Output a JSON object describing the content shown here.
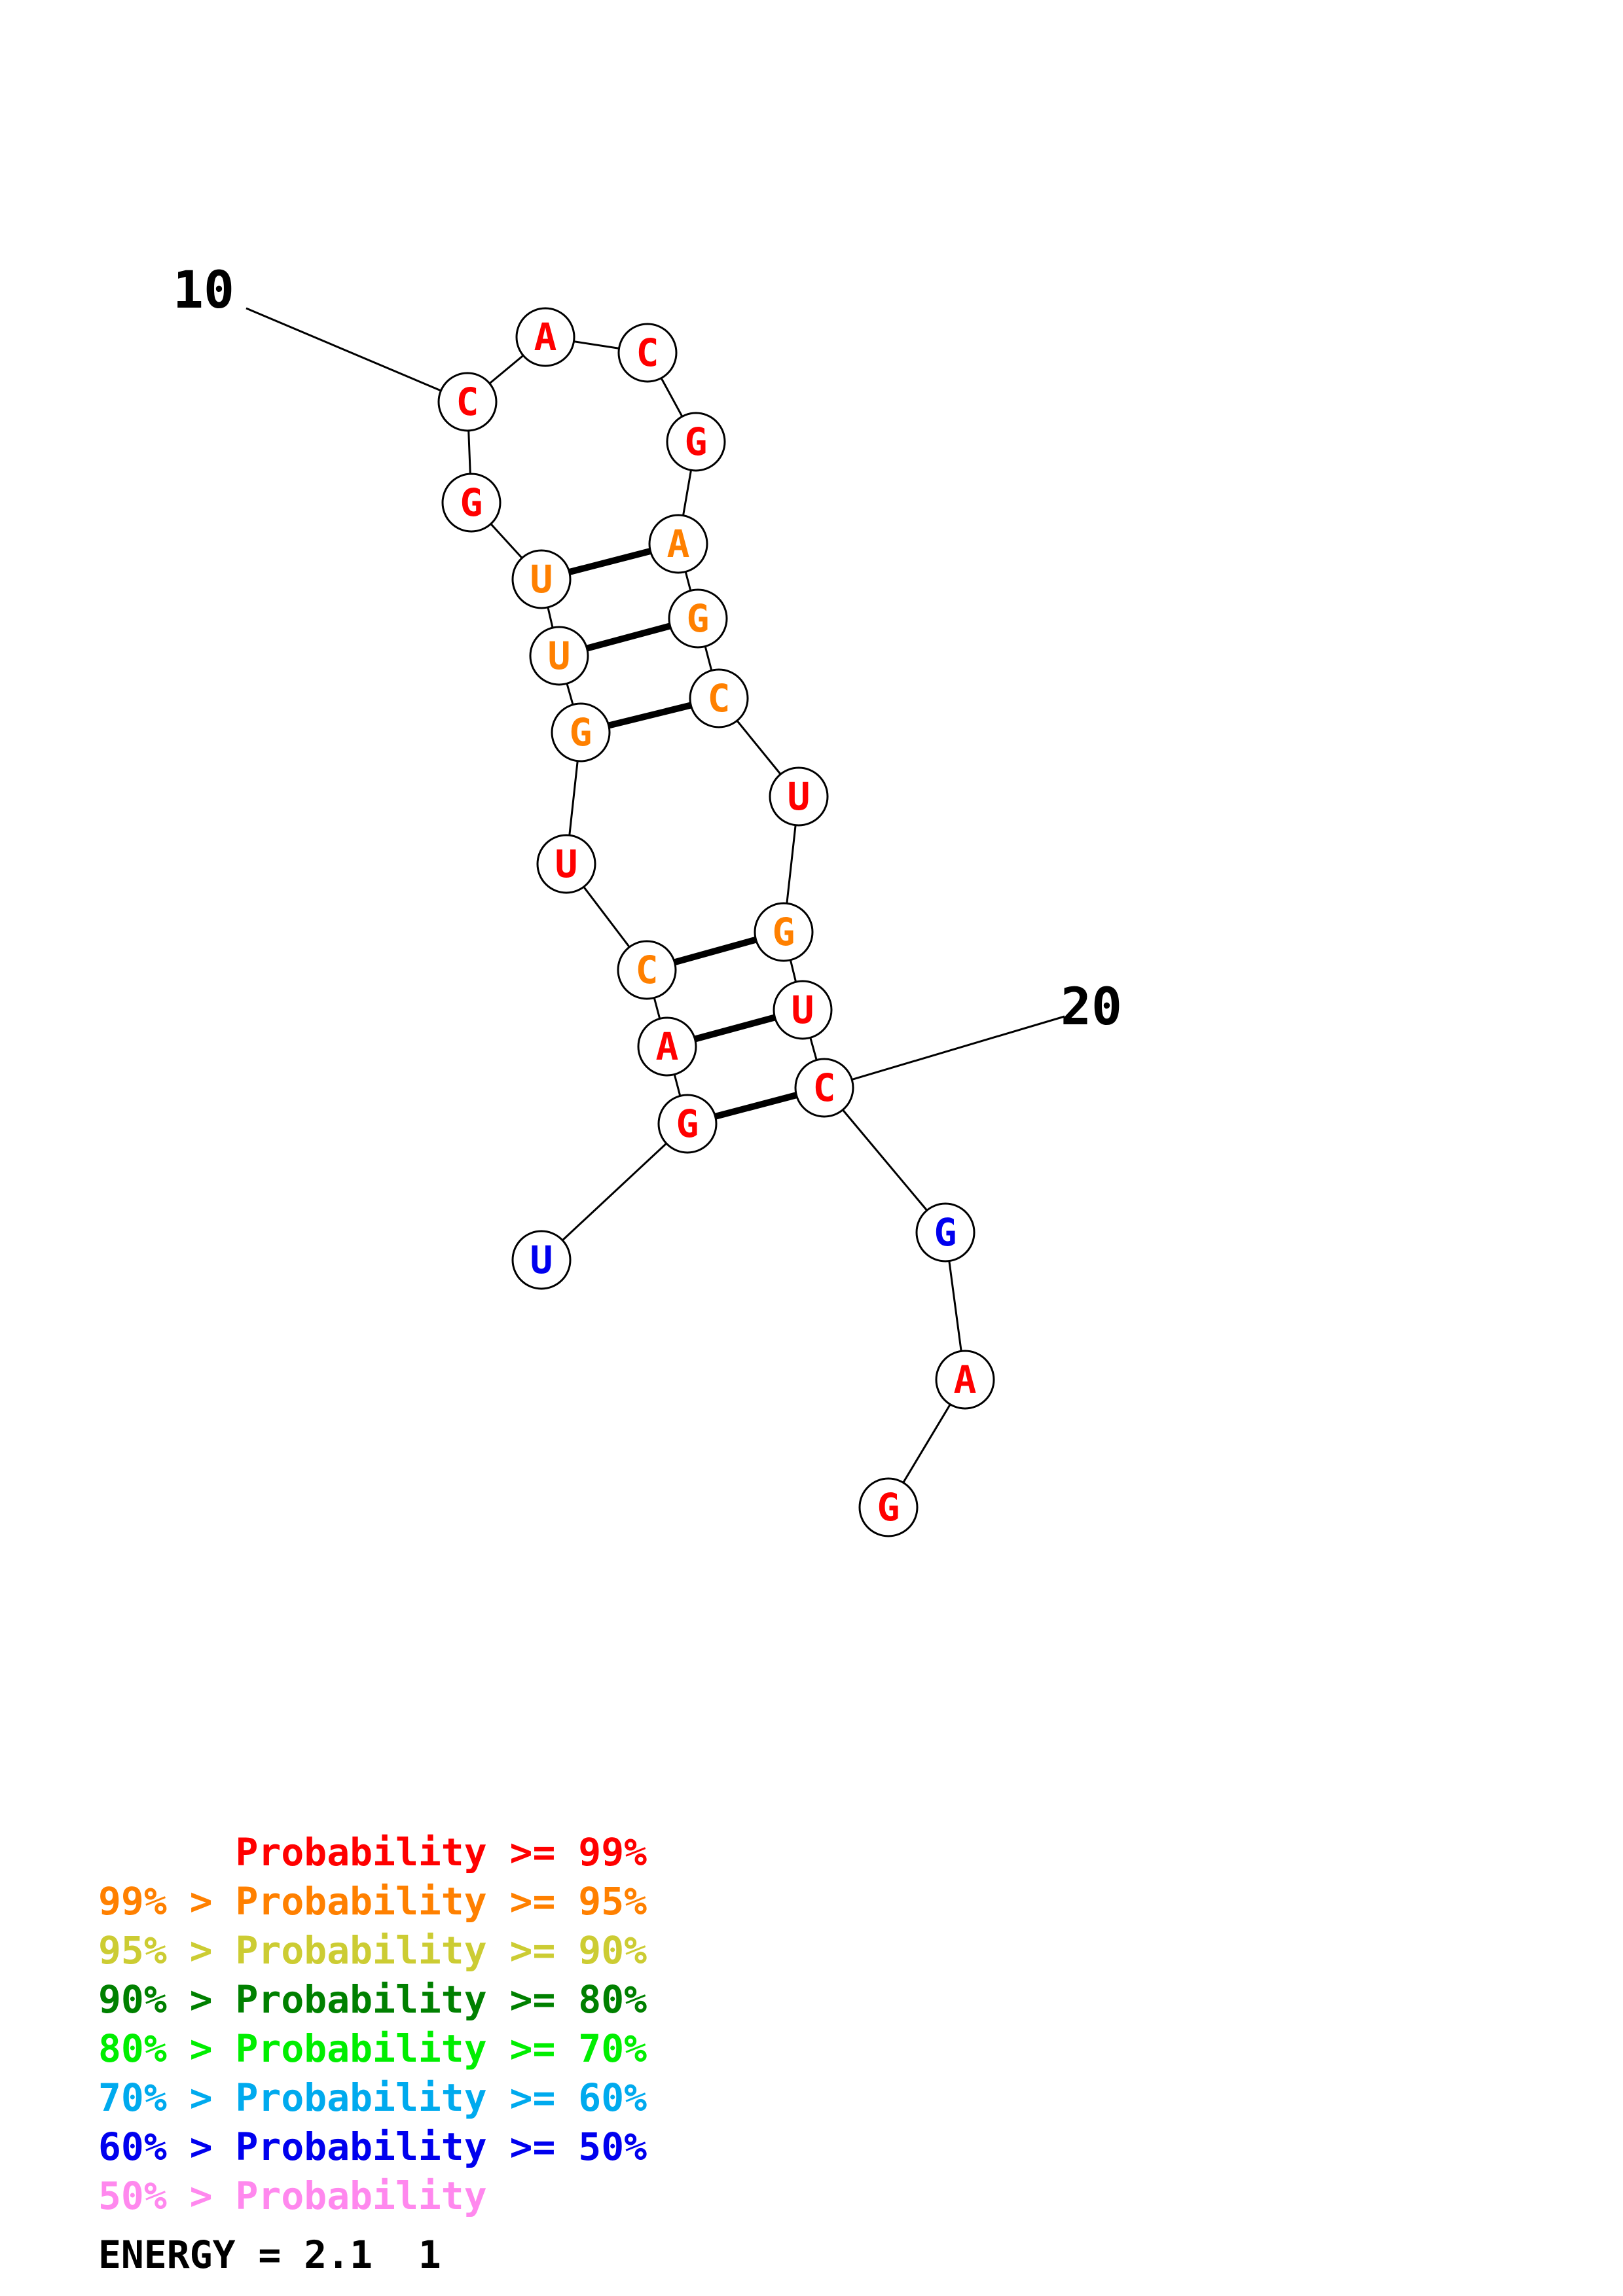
{
  "colors": {
    "p99": "#ff0000",
    "p95": "#ff8000",
    "p90": "#cccc33",
    "p80": "#008000",
    "p70": "#00ee00",
    "p60": "#00aaee",
    "p50": "#0000ee",
    "plow": "#ff88ee"
  },
  "nucleotides": [
    {
      "letter": "U",
      "color": "#0000ee"
    },
    {
      "letter": "G",
      "color": "#ff0000"
    },
    {
      "letter": "A",
      "color": "#ff0000"
    },
    {
      "letter": "C",
      "color": "#ff8000"
    },
    {
      "letter": "U",
      "color": "#ff0000"
    },
    {
      "letter": "G",
      "color": "#ff8000"
    },
    {
      "letter": "U",
      "color": "#ff8000"
    },
    {
      "letter": "U",
      "color": "#ff8000"
    },
    {
      "letter": "G",
      "color": "#ff0000"
    },
    {
      "letter": "C",
      "color": "#ff0000"
    },
    {
      "letter": "A",
      "color": "#ff0000"
    },
    {
      "letter": "C",
      "color": "#ff0000"
    },
    {
      "letter": "G",
      "color": "#ff0000"
    },
    {
      "letter": "A",
      "color": "#ff8000"
    },
    {
      "letter": "G",
      "color": "#ff8000"
    },
    {
      "letter": "C",
      "color": "#ff8000"
    },
    {
      "letter": "U",
      "color": "#ff0000"
    },
    {
      "letter": "G",
      "color": "#ff8000"
    },
    {
      "letter": "U",
      "color": "#ff0000"
    },
    {
      "letter": "C",
      "color": "#ff0000"
    },
    {
      "letter": "G",
      "color": "#0000ee"
    },
    {
      "letter": "A",
      "color": "#ff0000"
    },
    {
      "letter": "G",
      "color": "#ff0000"
    }
  ],
  "pairs": [
    [
      2,
      20
    ],
    [
      3,
      19
    ],
    [
      4,
      18
    ],
    [
      6,
      16
    ],
    [
      7,
      15
    ],
    [
      8,
      14
    ]
  ],
  "position_labels": [
    {
      "text": "10",
      "index": 10
    },
    {
      "text": "20",
      "index": 20
    }
  ],
  "legend": [
    {
      "text": "      Probability >= 99%",
      "color": "#ff0000"
    },
    {
      "text": "99% > Probability >= 95%",
      "color": "#ff8000"
    },
    {
      "text": "95% > Probability >= 90%",
      "color": "#cccc33"
    },
    {
      "text": "90% > Probability >= 80%",
      "color": "#008000"
    },
    {
      "text": "80% > Probability >= 70%",
      "color": "#00ee00"
    },
    {
      "text": "70% > Probability >= 60%",
      "color": "#00aaee"
    },
    {
      "text": "60% > Probability >= 50%",
      "color": "#0000ee"
    },
    {
      "text": "50% > Probability",
      "color": "#ff88ee"
    }
  ],
  "energy": "ENERGY = 2.1  1"
}
